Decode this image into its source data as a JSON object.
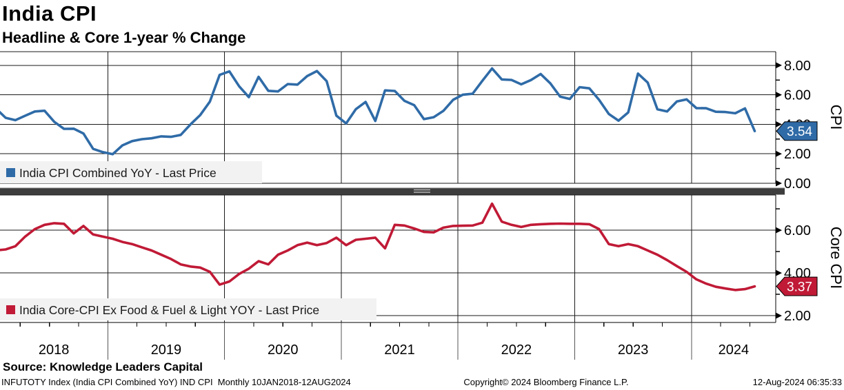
{
  "header": {
    "title": "India CPI",
    "subtitle": "Headline & Core 1-year % Change"
  },
  "footer": {
    "source": "Source: Knowledge Leaders Capital",
    "ticker_info": "INFUTOTY Index (India CPI Combined YoY) IND CPI  Monthly 10JAN2018-12AUG2024",
    "copyright": "Copyright© 2024 Bloomberg Finance L.P.",
    "timestamp": "12-Aug-2024 06:35:33"
  },
  "chart_data": {
    "type": "line",
    "frequency": "Monthly",
    "x_range": [
      "2018-01",
      "2024-07"
    ],
    "x_tick_labels": [
      "2018",
      "2019",
      "2020",
      "2021",
      "2022",
      "2023",
      "2024"
    ],
    "grid": true,
    "legend_position": "bottom-left-inside",
    "colors": {
      "grid": "#1a1a1a",
      "legend_bg": "#f2f2f2",
      "divider": "#3d3d3d",
      "divider_grip": "#b5b5b5"
    },
    "panels": [
      {
        "axis_title": "CPI",
        "legend": "India CPI Combined YoY - Last Price",
        "color": "#2f6ba7",
        "last_price": "3.54",
        "y_ticks": [
          0,
          2,
          4,
          6,
          8
        ],
        "y_minor_ticks": [
          1,
          3,
          5,
          7
        ],
        "ylim": [
          0,
          8.93
        ],
        "values": [
          5.07,
          4.44,
          4.28,
          4.58,
          4.87,
          4.92,
          4.17,
          3.69,
          3.7,
          3.38,
          2.33,
          2.11,
          1.97,
          2.57,
          2.86,
          2.99,
          3.05,
          3.18,
          3.15,
          3.28,
          3.99,
          4.62,
          5.54,
          7.35,
          7.59,
          6.58,
          5.84,
          7.22,
          6.27,
          6.23,
          6.73,
          6.69,
          7.27,
          7.61,
          6.93,
          4.59,
          4.06,
          5.03,
          5.52,
          4.23,
          6.3,
          6.26,
          5.59,
          5.3,
          4.35,
          4.48,
          4.91,
          5.66,
          6.01,
          6.07,
          6.95,
          7.79,
          7.04,
          7.01,
          6.71,
          7.0,
          7.41,
          6.77,
          5.88,
          5.72,
          6.52,
          6.44,
          5.66,
          4.7,
          4.25,
          4.81,
          7.44,
          6.83,
          5.02,
          4.87,
          5.55,
          5.69,
          5.1,
          5.09,
          4.85,
          4.83,
          4.75,
          5.08,
          3.54
        ]
      },
      {
        "axis_title": "Core CPI",
        "legend": "India Core-CPI Ex Food & Fuel & Light YOY - Last Price",
        "color": "#c01a36",
        "last_price": "3.37",
        "y_ticks": [
          2,
          4,
          6
        ],
        "y_minor_ticks": [
          3,
          5,
          7
        ],
        "ylim": [
          1.68,
          7.65
        ],
        "values": [
          5.05,
          5.1,
          5.25,
          5.7,
          6.05,
          6.25,
          6.33,
          6.3,
          5.85,
          6.2,
          5.8,
          5.7,
          5.6,
          5.45,
          5.35,
          5.2,
          5.05,
          4.85,
          4.65,
          4.4,
          4.3,
          4.25,
          4.05,
          3.45,
          3.6,
          3.95,
          4.2,
          4.55,
          4.4,
          4.85,
          5.05,
          5.3,
          5.42,
          5.3,
          5.4,
          5.65,
          5.3,
          5.55,
          5.6,
          5.65,
          5.15,
          6.25,
          6.22,
          6.08,
          5.92,
          5.9,
          6.12,
          6.2,
          6.21,
          6.22,
          6.35,
          7.24,
          6.4,
          6.25,
          6.15,
          6.25,
          6.28,
          6.3,
          6.31,
          6.3,
          6.3,
          6.28,
          6.05,
          5.35,
          5.25,
          5.35,
          5.25,
          5.05,
          4.85,
          4.6,
          4.32,
          4.05,
          3.7,
          3.5,
          3.35,
          3.27,
          3.2,
          3.24,
          3.37
        ]
      }
    ]
  }
}
